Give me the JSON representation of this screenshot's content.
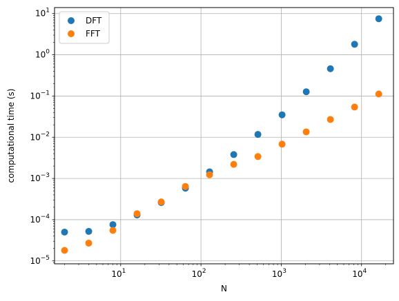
{
  "chart_data": {
    "type": "scatter",
    "title": "",
    "xlabel": "N",
    "ylabel": "computational time (s)",
    "xscale": "log",
    "yscale": "log",
    "xlim": [
      1.5,
      25000
    ],
    "ylim": [
      8.5e-06,
      14
    ],
    "grid": true,
    "legend_position": "top-left",
    "x_ticks": [
      {
        "value": 10,
        "base": "10",
        "exp": "1"
      },
      {
        "value": 100,
        "base": "10",
        "exp": "2"
      },
      {
        "value": 1000,
        "base": "10",
        "exp": "3"
      },
      {
        "value": 10000,
        "base": "10",
        "exp": "4"
      }
    ],
    "y_ticks": [
      {
        "value": 1e-05,
        "base": "10",
        "exp": "−5"
      },
      {
        "value": 0.0001,
        "base": "10",
        "exp": "−4"
      },
      {
        "value": 0.001,
        "base": "10",
        "exp": "−3"
      },
      {
        "value": 0.01,
        "base": "10",
        "exp": "−2"
      },
      {
        "value": 0.1,
        "base": "10",
        "exp": "−1"
      },
      {
        "value": 1,
        "base": "10",
        "exp": "0"
      },
      {
        "value": 10,
        "base": "10",
        "exp": "1"
      }
    ],
    "x": [
      2,
      4,
      8,
      16,
      32,
      64,
      128,
      256,
      512,
      1024,
      2048,
      4096,
      8192,
      16384
    ],
    "series": [
      {
        "name": "DFT",
        "color": "#1f77b4",
        "values": [
          5e-05,
          5.2e-05,
          7.6e-05,
          0.00013,
          0.00026,
          0.00058,
          0.00145,
          0.0038,
          0.0117,
          0.035,
          0.127,
          0.46,
          1.8,
          7.5
        ]
      },
      {
        "name": "FFT",
        "color": "#ff7f0e",
        "values": [
          1.8e-05,
          2.7e-05,
          5.5e-05,
          0.00014,
          0.00027,
          0.00064,
          0.00123,
          0.0022,
          0.0034,
          0.0068,
          0.0135,
          0.027,
          0.054,
          0.112
        ]
      }
    ]
  }
}
